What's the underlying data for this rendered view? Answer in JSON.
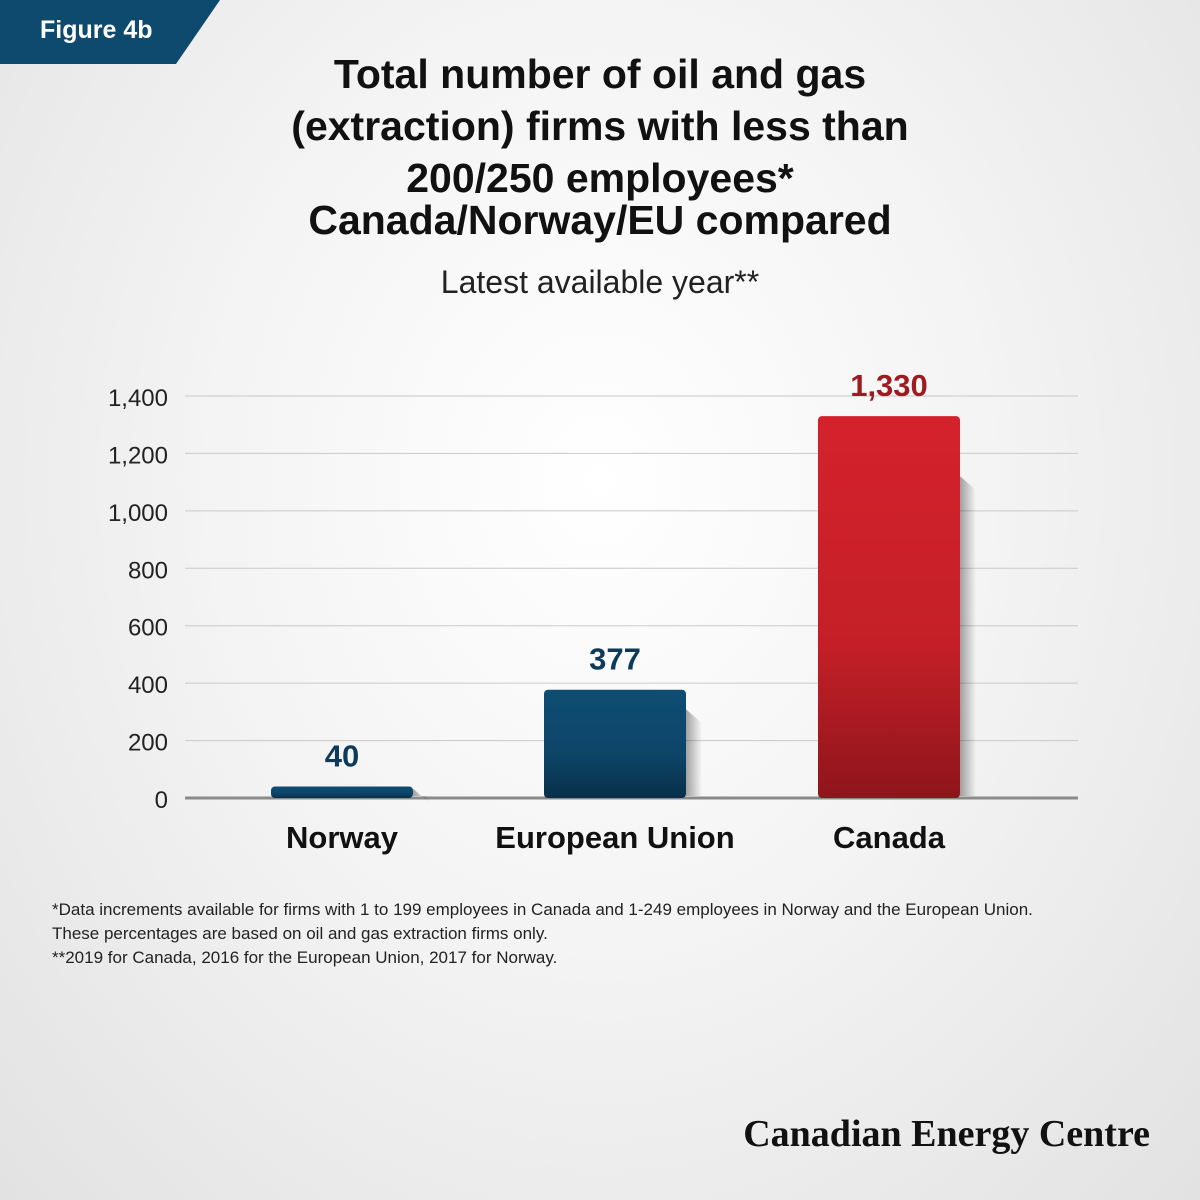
{
  "figure_label": "Figure 4b",
  "title_lines": [
    "Total number of oil and gas",
    "(extraction) firms with less than",
    "200/250 employees*"
  ],
  "subtitle": "Canada/Norway/EU compared",
  "caption": "Latest available year**",
  "chart_data": {
    "type": "bar",
    "categories": [
      "Norway",
      "European Union",
      "Canada"
    ],
    "values": [
      40,
      377,
      1330
    ],
    "value_labels": [
      "40",
      "377",
      "1,330"
    ],
    "ylim": [
      0,
      1400
    ],
    "yticks": [
      0,
      200,
      400,
      600,
      800,
      1000,
      1200,
      1400
    ],
    "ytick_labels": [
      "0",
      "200",
      "400",
      "600",
      "800",
      "1,000",
      "1,200",
      "1,400"
    ],
    "grid": true,
    "colors": [
      "#0d4a6e",
      "#0d4a6e",
      "#c8202a"
    ],
    "label_colors": [
      "#0d3a58",
      "#0d3a58",
      "#9e1b22"
    ]
  },
  "footnotes": [
    "*Data increments available for firms with 1 to 199 employees in Canada and 1-249 employees in Norway and the European Union. These percentages are based on oil and gas extraction firms only.",
    "**2019 for Canada, 2016 for the European Union, 2017 for Norway."
  ],
  "brand": "Canadian Energy Centre"
}
